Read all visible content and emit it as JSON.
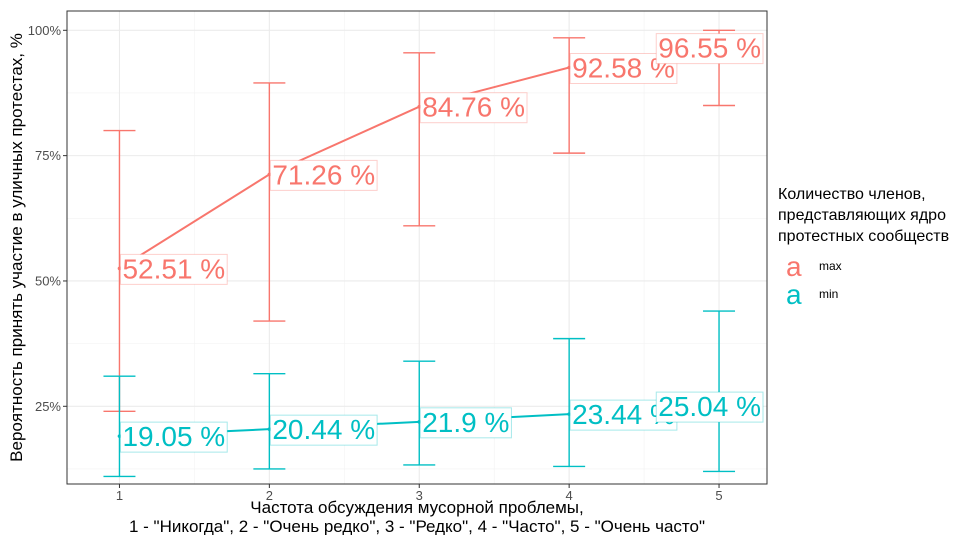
{
  "chart_data": {
    "type": "line",
    "title": "",
    "xlabel_lines": [
      "Частота обсуждения мусорной проблемы,",
      "1 - \"Никогда\", 2 - \"Очень редко\", 3 - \"Редко\", 4 - \"Часто\", 5 - \"Очень часто\""
    ],
    "ylabel": "Вероятность принять участие в уличных протестах, %",
    "x": [
      1,
      2,
      3,
      4,
      5
    ],
    "x_tick_labels": [
      "1",
      "2",
      "3",
      "4",
      "5"
    ],
    "xlim": [
      0.65,
      5.32
    ],
    "ylim": [
      0.095,
      1.0385
    ],
    "y_ticks": [
      0.25,
      0.5,
      0.75,
      1.0
    ],
    "y_tick_labels": [
      "25%",
      "50%",
      "75%",
      "100%"
    ],
    "grid": true,
    "legend": {
      "position": "right",
      "title_lines": [
        "Количество членов,",
        "представляющих ядро",
        "протестных сообществ"
      ],
      "key_glyph": "a"
    },
    "series": [
      {
        "name": "max",
        "color": "#F8766D",
        "values": [
          0.5251,
          0.7126,
          0.8476,
          0.9258,
          0.9655
        ],
        "lower": [
          0.24,
          0.42,
          0.61,
          0.755,
          0.85
        ],
        "upper": [
          0.8,
          0.895,
          0.955,
          0.985,
          1.0
        ],
        "labels": [
          "52.51 %",
          "71.26 %",
          "84.76 %",
          "92.58 %",
          "96.55 %"
        ]
      },
      {
        "name": "min",
        "color": "#00BFC4",
        "values": [
          0.1905,
          0.2044,
          0.219,
          0.2344,
          0.2504
        ],
        "lower": [
          0.11,
          0.125,
          0.133,
          0.13,
          0.12
        ],
        "upper": [
          0.31,
          0.315,
          0.34,
          0.385,
          0.44
        ],
        "labels": [
          "19.05 %",
          "20.44 %",
          "21.9 %",
          "23.44 %",
          "25.04 %"
        ]
      }
    ]
  }
}
